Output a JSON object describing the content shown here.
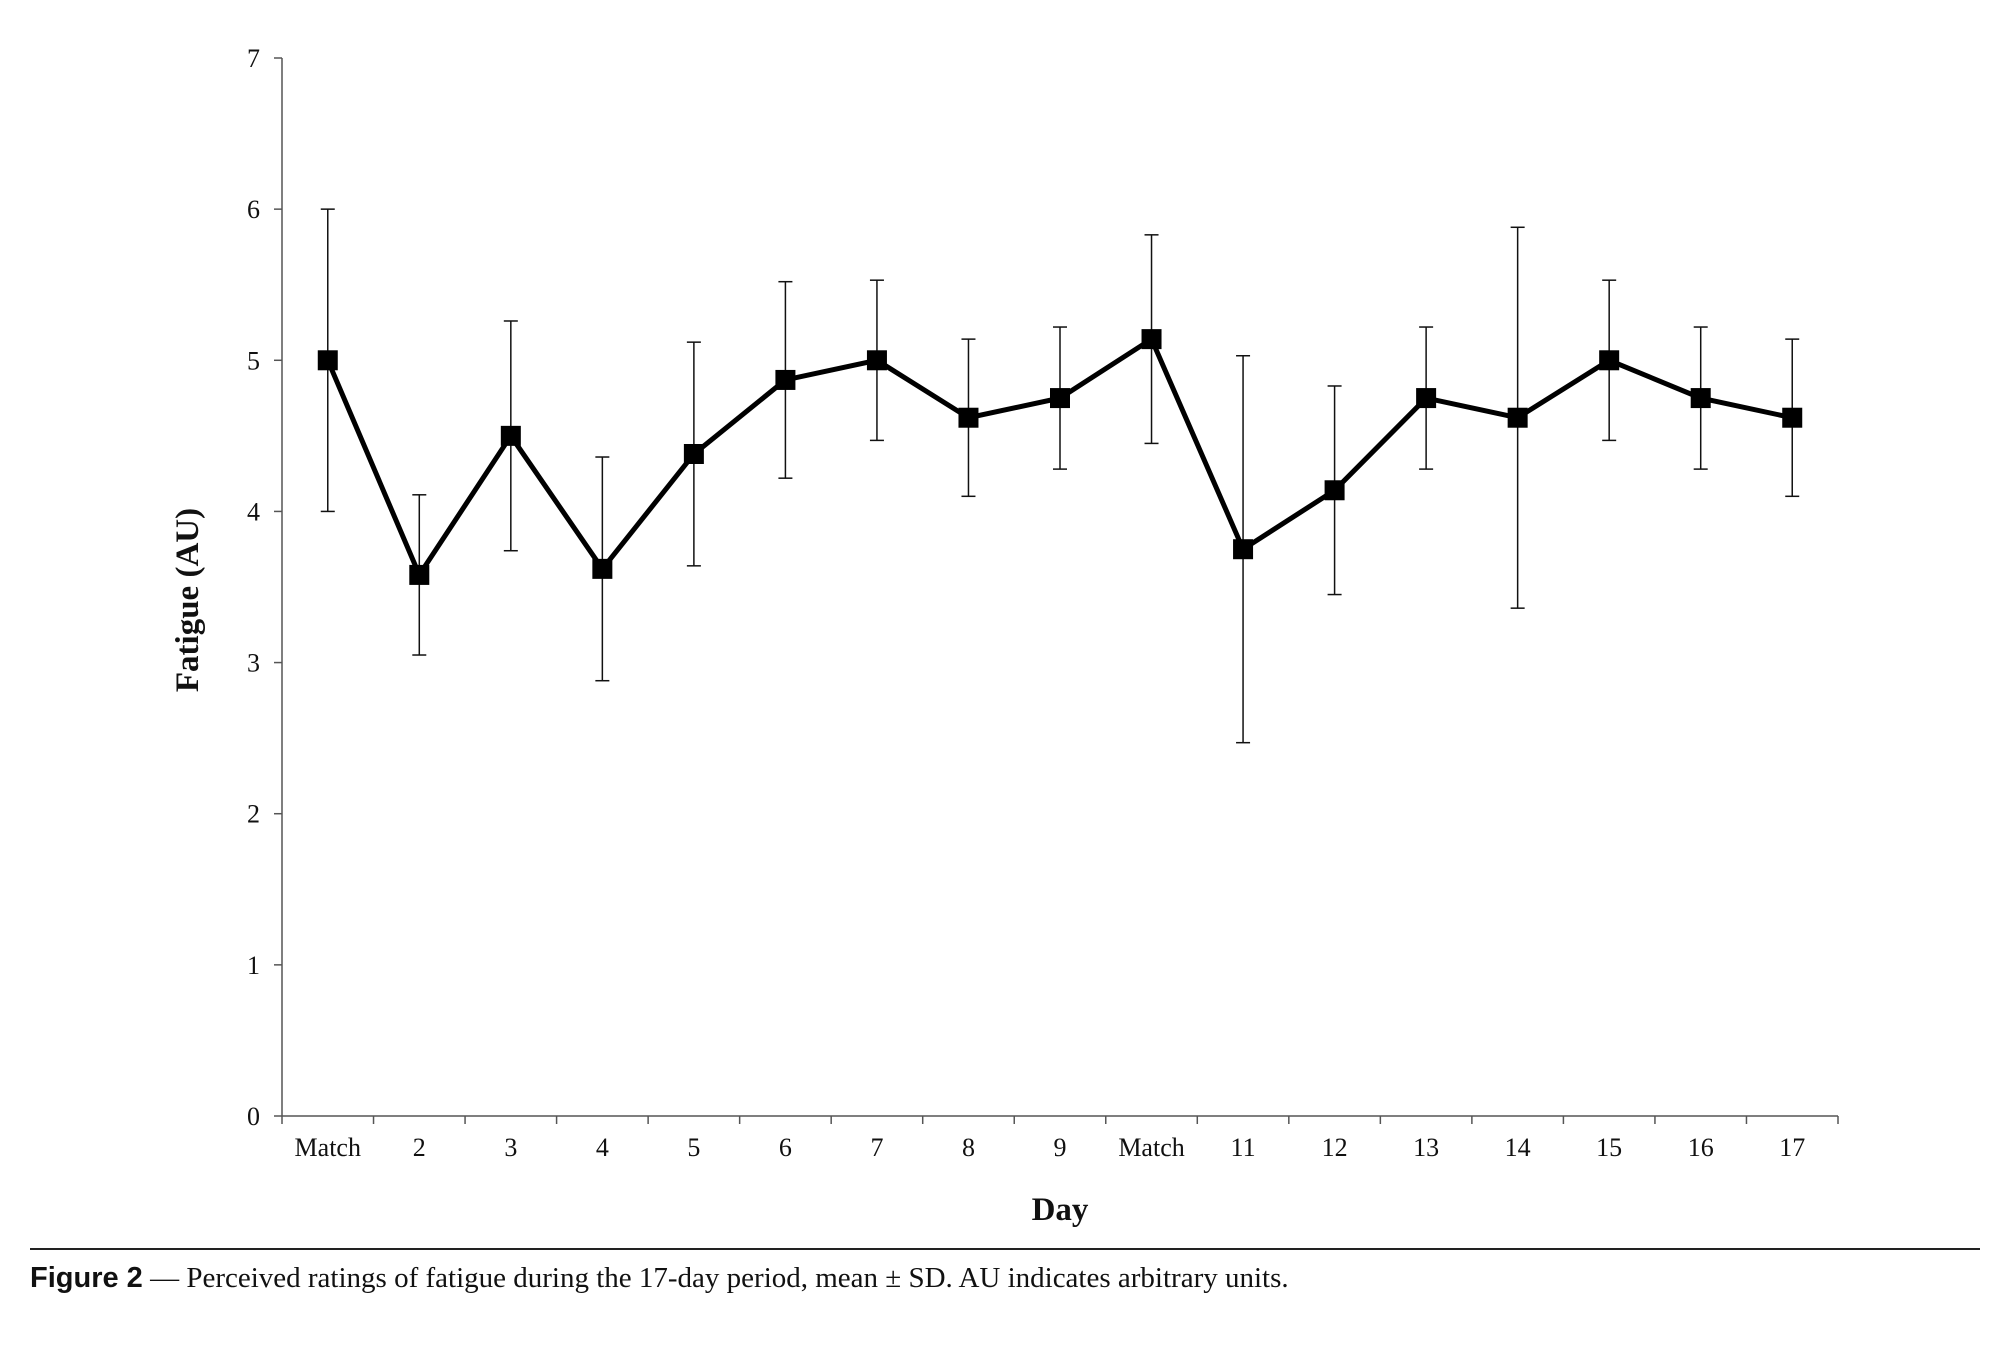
{
  "chart_data": {
    "type": "line",
    "title": "",
    "xlabel": "Day",
    "ylabel": "Fatigue (AU)",
    "ylim": [
      0,
      7
    ],
    "yticks": [
      "0",
      "1",
      "2",
      "3",
      "4",
      "5",
      "6",
      "7"
    ],
    "categories": [
      "Match",
      "2",
      "3",
      "4",
      "5",
      "6",
      "7",
      "8",
      "9",
      "Match",
      "11",
      "12",
      "13",
      "14",
      "15",
      "16",
      "17"
    ],
    "series": [
      {
        "name": "Fatigue",
        "values": [
          5.0,
          3.58,
          4.5,
          3.62,
          4.38,
          4.87,
          5.0,
          4.62,
          4.75,
          5.14,
          3.75,
          4.14,
          4.75,
          4.62,
          5.0,
          4.75,
          4.62
        ],
        "error": [
          1.0,
          0.53,
          0.76,
          0.74,
          0.74,
          0.65,
          0.53,
          0.52,
          0.47,
          0.69,
          1.28,
          0.69,
          0.47,
          1.26,
          0.53,
          0.47,
          0.52
        ],
        "marker": "square",
        "color": "#000000"
      }
    ],
    "grid": false,
    "error_bars": "mean ± SD"
  },
  "caption": {
    "label": "Figure 2",
    "text": " — Perceived ratings of fatigue during the 17-day period, mean ± SD. AU indicates arbitrary units."
  }
}
